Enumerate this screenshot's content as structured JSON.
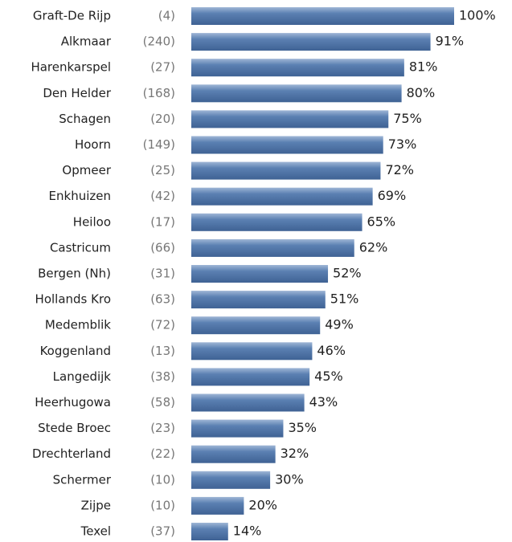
{
  "chart_data": {
    "type": "bar",
    "orientation": "horizontal",
    "categories": [
      "Graft-De Rijp",
      "Alkmaar",
      "Harenkarspel",
      "Den Helder",
      "Schagen",
      "Hoorn",
      "Opmeer",
      "Enkhuizen",
      "Heiloo",
      "Castricum",
      "Bergen (Nh)",
      "Hollands Kro",
      "Medemblik",
      "Koggenland",
      "Langedijk",
      "Heerhugowa",
      "Stede Broec",
      "Drechterland",
      "Schermer",
      "Zijpe",
      "Texel"
    ],
    "counts": [
      "(4)",
      "(240)",
      "(27)",
      "(168)",
      "(20)",
      "(149)",
      "(25)",
      "(42)",
      "(17)",
      "(66)",
      "(31)",
      "(63)",
      "(72)",
      "(13)",
      "(38)",
      "(58)",
      "(23)",
      "(22)",
      "(10)",
      "(10)",
      "(37)"
    ],
    "values": [
      100,
      91,
      81,
      80,
      75,
      73,
      72,
      69,
      65,
      62,
      52,
      51,
      49,
      46,
      45,
      43,
      35,
      32,
      30,
      20,
      14
    ],
    "value_labels": [
      "100%",
      "91%",
      "81%",
      "80%",
      "75%",
      "73%",
      "72%",
      "69%",
      "65%",
      "62%",
      "52%",
      "51%",
      "49%",
      "46%",
      "45%",
      "43%",
      "35%",
      "32%",
      "30%",
      "20%",
      "14%"
    ],
    "color": "#5b80b2",
    "xlim": [
      0,
      100
    ]
  }
}
